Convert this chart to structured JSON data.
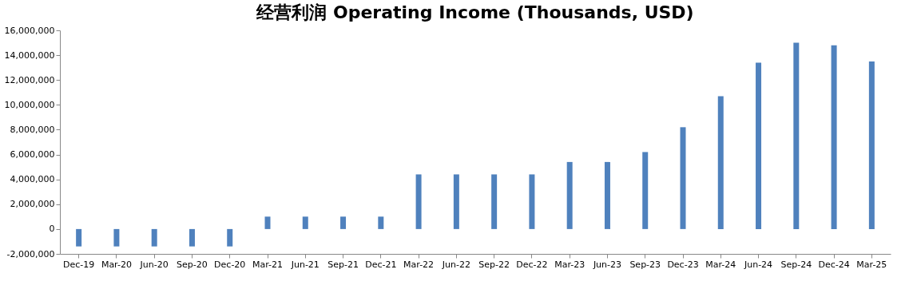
{
  "chart_data": {
    "type": "bar",
    "title": "经营利润 Operating Income (Thousands, USD)",
    "categories": [
      "Dec-19",
      "Mar-20",
      "Jun-20",
      "Sep-20",
      "Dec-20",
      "Mar-21",
      "Jun-21",
      "Sep-21",
      "Dec-21",
      "Mar-22",
      "Jun-22",
      "Sep-22",
      "Dec-22",
      "Mar-23",
      "Jun-23",
      "Sep-23",
      "Dec-23",
      "Mar-24",
      "Jun-24",
      "Sep-24",
      "Dec-24",
      "Mar-25"
    ],
    "values": [
      -1400000,
      -1400000,
      -1400000,
      -1400000,
      -1400000,
      1000000,
      1000000,
      1000000,
      1000000,
      4400000,
      4400000,
      4400000,
      4400000,
      5400000,
      5400000,
      6200000,
      8200000,
      10700000,
      13400000,
      15000000,
      14800000,
      13500000
    ],
    "color": "#4f81bd",
    "ylim": [
      -2000000,
      16000000
    ],
    "yticks": [
      {
        "value": -2000000,
        "label": "-2,000,000"
      },
      0,
      {
        "value": 2000000,
        "label": "2,000,000"
      },
      {
        "value": 4000000,
        "label": "4,000,000"
      },
      {
        "value": 6000000,
        "label": "6,000,000"
      },
      {
        "value": 8000000,
        "label": "8,000,000"
      },
      {
        "value": 10000000,
        "label": "10,000,000"
      },
      {
        "value": 12000000,
        "label": "12,000,000"
      },
      {
        "value": 14000000,
        "label": "14,000,000"
      },
      {
        "value": 16000000,
        "label": "16,000,000"
      }
    ],
    "grid": false
  }
}
